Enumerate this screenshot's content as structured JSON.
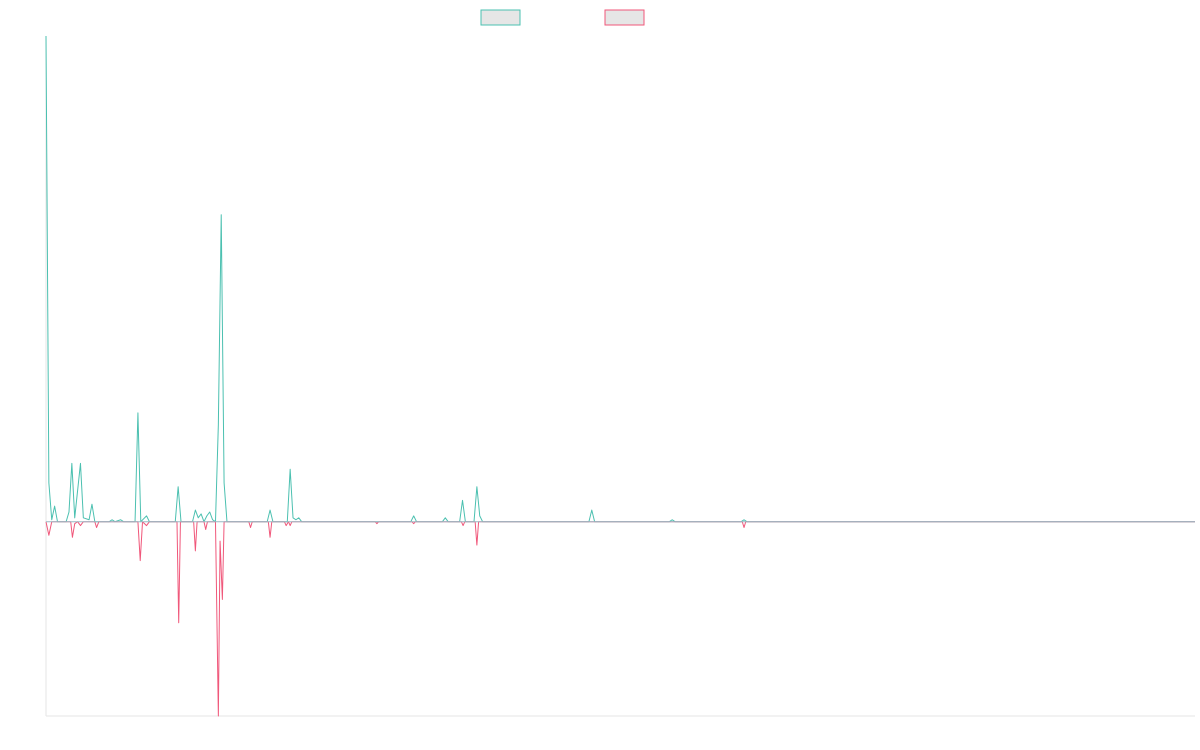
{
  "chart_data": {
    "type": "line",
    "title": "",
    "xlabel": "",
    "ylabel": "",
    "grid": false,
    "legend_position": "top-center",
    "colors": {
      "series_a": "#4bc0b0",
      "series_b": "#f0577a",
      "legend_fill": "#e6e6e6",
      "axis": "#e6e6e6",
      "baseline": "#9ab8c4"
    },
    "ylim": [
      -100,
      250
    ],
    "xlim": [
      0,
      200
    ],
    "series": [
      {
        "key": "a",
        "values": [
          {
            "x": 0,
            "y": 250
          },
          {
            "x": 0.5,
            "y": 20
          },
          {
            "x": 1,
            "y": 1
          },
          {
            "x": 1.5,
            "y": 8
          },
          {
            "x": 2,
            "y": 0
          },
          {
            "x": 3.5,
            "y": 0
          },
          {
            "x": 4,
            "y": 5
          },
          {
            "x": 4.5,
            "y": 30
          },
          {
            "x": 5,
            "y": 2
          },
          {
            "x": 6,
            "y": 30
          },
          {
            "x": 6.5,
            "y": 2
          },
          {
            "x": 7.5,
            "y": 1
          },
          {
            "x": 8,
            "y": 9
          },
          {
            "x": 8.5,
            "y": 0
          },
          {
            "x": 11,
            "y": 0
          },
          {
            "x": 11.5,
            "y": 1
          },
          {
            "x": 12,
            "y": 0
          },
          {
            "x": 13,
            "y": 1
          },
          {
            "x": 13.5,
            "y": 0
          },
          {
            "x": 15.5,
            "y": 0
          },
          {
            "x": 16,
            "y": 56
          },
          {
            "x": 16.5,
            "y": 0
          },
          {
            "x": 17.5,
            "y": 3
          },
          {
            "x": 18,
            "y": 0
          },
          {
            "x": 22.5,
            "y": 0
          },
          {
            "x": 23,
            "y": 18
          },
          {
            "x": 23.5,
            "y": 0
          },
          {
            "x": 25.5,
            "y": 0
          },
          {
            "x": 26,
            "y": 6
          },
          {
            "x": 26.5,
            "y": 2
          },
          {
            "x": 27,
            "y": 4
          },
          {
            "x": 27.5,
            "y": 0
          },
          {
            "x": 28,
            "y": 3
          },
          {
            "x": 28.5,
            "y": 5
          },
          {
            "x": 29,
            "y": 1
          },
          {
            "x": 29.5,
            "y": 0
          },
          {
            "x": 30,
            "y": 50
          },
          {
            "x": 30.5,
            "y": 158
          },
          {
            "x": 31,
            "y": 20
          },
          {
            "x": 31.5,
            "y": 0
          },
          {
            "x": 38.5,
            "y": 0
          },
          {
            "x": 39,
            "y": 6
          },
          {
            "x": 39.5,
            "y": 0
          },
          {
            "x": 42,
            "y": 0
          },
          {
            "x": 42.5,
            "y": 27
          },
          {
            "x": 43,
            "y": 2
          },
          {
            "x": 43.5,
            "y": 1
          },
          {
            "x": 44,
            "y": 2
          },
          {
            "x": 44.5,
            "y": 0
          },
          {
            "x": 63.5,
            "y": 0
          },
          {
            "x": 64,
            "y": 3
          },
          {
            "x": 64.5,
            "y": 0
          },
          {
            "x": 69,
            "y": 0
          },
          {
            "x": 69.5,
            "y": 2
          },
          {
            "x": 70,
            "y": 0
          },
          {
            "x": 72,
            "y": 0
          },
          {
            "x": 72.5,
            "y": 11
          },
          {
            "x": 73,
            "y": 0
          },
          {
            "x": 74.5,
            "y": 0
          },
          {
            "x": 75,
            "y": 18
          },
          {
            "x": 75.5,
            "y": 3
          },
          {
            "x": 76,
            "y": 0
          },
          {
            "x": 94.5,
            "y": 0
          },
          {
            "x": 95,
            "y": 6
          },
          {
            "x": 95.5,
            "y": 0
          },
          {
            "x": 108.5,
            "y": 0
          },
          {
            "x": 109,
            "y": 1
          },
          {
            "x": 109.5,
            "y": 0
          },
          {
            "x": 121,
            "y": 0
          },
          {
            "x": 121.5,
            "y": 1
          },
          {
            "x": 122,
            "y": 0
          },
          {
            "x": 200,
            "y": 0
          }
        ]
      },
      {
        "key": "b",
        "values": [
          {
            "x": 0,
            "y": 0
          },
          {
            "x": 0.5,
            "y": -7
          },
          {
            "x": 1,
            "y": 0
          },
          {
            "x": 4.3,
            "y": 0
          },
          {
            "x": 4.6,
            "y": -8
          },
          {
            "x": 5,
            "y": -1
          },
          {
            "x": 5.5,
            "y": 0
          },
          {
            "x": 6,
            "y": -2
          },
          {
            "x": 6.5,
            "y": 0
          },
          {
            "x": 8.5,
            "y": 0
          },
          {
            "x": 8.8,
            "y": -3
          },
          {
            "x": 9.2,
            "y": 0
          },
          {
            "x": 16,
            "y": 0
          },
          {
            "x": 16.4,
            "y": -20
          },
          {
            "x": 16.8,
            "y": 0
          },
          {
            "x": 17.5,
            "y": -2
          },
          {
            "x": 18,
            "y": 0
          },
          {
            "x": 22.8,
            "y": 0
          },
          {
            "x": 23.1,
            "y": -52
          },
          {
            "x": 23.4,
            "y": 0
          },
          {
            "x": 25.7,
            "y": 0
          },
          {
            "x": 26,
            "y": -15
          },
          {
            "x": 26.3,
            "y": 0
          },
          {
            "x": 27.5,
            "y": 0
          },
          {
            "x": 27.8,
            "y": -4
          },
          {
            "x": 28.1,
            "y": 0
          },
          {
            "x": 29.5,
            "y": 0
          },
          {
            "x": 30,
            "y": -100
          },
          {
            "x": 30.3,
            "y": -10
          },
          {
            "x": 30.7,
            "y": -40
          },
          {
            "x": 31,
            "y": 0
          },
          {
            "x": 35.3,
            "y": 0
          },
          {
            "x": 35.6,
            "y": -3
          },
          {
            "x": 35.9,
            "y": 0
          },
          {
            "x": 38.7,
            "y": 0
          },
          {
            "x": 39,
            "y": -8
          },
          {
            "x": 39.3,
            "y": 0
          },
          {
            "x": 41.5,
            "y": 0
          },
          {
            "x": 41.8,
            "y": -2
          },
          {
            "x": 42.2,
            "y": 0
          },
          {
            "x": 42.5,
            "y": -2
          },
          {
            "x": 42.8,
            "y": 0
          },
          {
            "x": 57.3,
            "y": 0
          },
          {
            "x": 57.6,
            "y": -1
          },
          {
            "x": 57.9,
            "y": 0
          },
          {
            "x": 63.7,
            "y": 0
          },
          {
            "x": 64,
            "y": -1
          },
          {
            "x": 64.3,
            "y": 0
          },
          {
            "x": 72.3,
            "y": 0
          },
          {
            "x": 72.6,
            "y": -2
          },
          {
            "x": 72.9,
            "y": 0
          },
          {
            "x": 74.7,
            "y": 0
          },
          {
            "x": 75,
            "y": -12
          },
          {
            "x": 75.3,
            "y": 0
          },
          {
            "x": 121.2,
            "y": 0
          },
          {
            "x": 121.5,
            "y": -3
          },
          {
            "x": 121.8,
            "y": 0
          },
          {
            "x": 200,
            "y": 0
          }
        ]
      }
    ]
  }
}
